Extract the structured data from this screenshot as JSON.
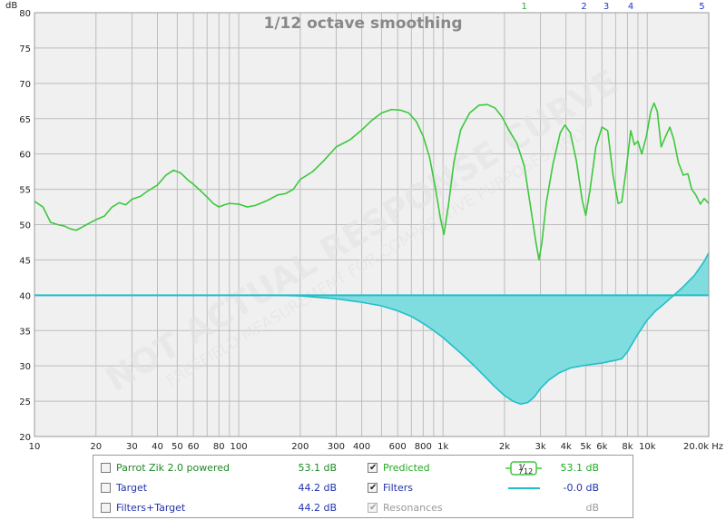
{
  "chart_data": {
    "type": "line",
    "title": "1/12 octave smoothing",
    "ylabel": "dB",
    "xlim": [
      10,
      20000
    ],
    "ylim": [
      20,
      80
    ],
    "x_scale": "log",
    "y_ticks": [
      20,
      25,
      30,
      35,
      40,
      45,
      50,
      55,
      60,
      65,
      70,
      75,
      80
    ],
    "x_tick_labels": [
      {
        "x": 10,
        "label": "10"
      },
      {
        "x": 20,
        "label": "20"
      },
      {
        "x": 30,
        "label": "30"
      },
      {
        "x": 40,
        "label": "40"
      },
      {
        "x": 50,
        "label": "50"
      },
      {
        "x": 60,
        "label": "60"
      },
      {
        "x": 80,
        "label": "80"
      },
      {
        "x": 100,
        "label": "100"
      },
      {
        "x": 200,
        "label": "200"
      },
      {
        "x": 300,
        "label": "300"
      },
      {
        "x": 400,
        "label": "400"
      },
      {
        "x": 600,
        "label": "600"
      },
      {
        "x": 800,
        "label": "800"
      },
      {
        "x": 1000,
        "label": "1k"
      },
      {
        "x": 2000,
        "label": "2k"
      },
      {
        "x": 3000,
        "label": "3k"
      },
      {
        "x": 4000,
        "label": "4k"
      },
      {
        "x": 5000,
        "label": "5k"
      },
      {
        "x": 6000,
        "label": "6k"
      },
      {
        "x": 8000,
        "label": "8k"
      },
      {
        "x": 10000,
        "label": "10k"
      },
      {
        "x": 20000,
        "label": "20.0k Hz"
      }
    ],
    "grid": true,
    "filter_markers": [
      {
        "label": "1",
        "x": 2500,
        "color": "#22aa22"
      },
      {
        "label": "2",
        "x": 4900,
        "color": "#2233cc"
      },
      {
        "label": "3",
        "x": 6300,
        "color": "#2233cc"
      },
      {
        "label": "4",
        "x": 8300,
        "color": "#2233cc"
      },
      {
        "label": "5",
        "x": 18500,
        "color": "#2233cc"
      }
    ],
    "series": [
      {
        "name": "Predicted",
        "color": "#3cc83c",
        "points": [
          [
            10,
            53.3
          ],
          [
            11,
            52.5
          ],
          [
            12,
            50.3
          ],
          [
            13,
            50.0
          ],
          [
            14,
            49.8
          ],
          [
            15,
            49.4
          ],
          [
            16,
            49.2
          ],
          [
            17,
            49.6
          ],
          [
            18,
            50.0
          ],
          [
            20,
            50.7
          ],
          [
            22,
            51.2
          ],
          [
            24,
            52.5
          ],
          [
            26,
            53.1
          ],
          [
            28,
            52.8
          ],
          [
            30,
            53.6
          ],
          [
            33,
            54.0
          ],
          [
            36,
            54.8
          ],
          [
            40,
            55.6
          ],
          [
            44,
            57.0
          ],
          [
            48,
            57.7
          ],
          [
            52,
            57.3
          ],
          [
            56,
            56.4
          ],
          [
            60,
            55.7
          ],
          [
            65,
            54.8
          ],
          [
            70,
            53.9
          ],
          [
            75,
            53.0
          ],
          [
            80,
            52.5
          ],
          [
            85,
            52.8
          ],
          [
            90,
            53.0
          ],
          [
            100,
            52.9
          ],
          [
            110,
            52.5
          ],
          [
            120,
            52.7
          ],
          [
            130,
            53.1
          ],
          [
            140,
            53.5
          ],
          [
            155,
            54.2
          ],
          [
            170,
            54.4
          ],
          [
            185,
            55.0
          ],
          [
            200,
            56.4
          ],
          [
            230,
            57.5
          ],
          [
            260,
            59.0
          ],
          [
            300,
            61.0
          ],
          [
            350,
            62.0
          ],
          [
            400,
            63.4
          ],
          [
            450,
            64.8
          ],
          [
            500,
            65.8
          ],
          [
            560,
            66.3
          ],
          [
            620,
            66.2
          ],
          [
            680,
            65.8
          ],
          [
            740,
            64.6
          ],
          [
            800,
            62.5
          ],
          [
            860,
            59.5
          ],
          [
            920,
            55.0
          ],
          [
            970,
            51.0
          ],
          [
            1010,
            48.6
          ],
          [
            1060,
            52.5
          ],
          [
            1130,
            58.8
          ],
          [
            1220,
            63.4
          ],
          [
            1350,
            65.8
          ],
          [
            1500,
            66.9
          ],
          [
            1650,
            67.0
          ],
          [
            1800,
            66.5
          ],
          [
            1950,
            65.2
          ],
          [
            2100,
            63.4
          ],
          [
            2300,
            61.5
          ],
          [
            2500,
            58.3
          ],
          [
            2700,
            52.0
          ],
          [
            2850,
            47.5
          ],
          [
            2950,
            45.0
          ],
          [
            3050,
            47.5
          ],
          [
            3200,
            53.0
          ],
          [
            3450,
            58.5
          ],
          [
            3750,
            63.0
          ],
          [
            3950,
            64.1
          ],
          [
            4200,
            63.0
          ],
          [
            4500,
            59.0
          ],
          [
            4800,
            53.5
          ],
          [
            5000,
            51.3
          ],
          [
            5250,
            55.0
          ],
          [
            5600,
            61.0
          ],
          [
            6000,
            63.8
          ],
          [
            6400,
            63.3
          ],
          [
            6800,
            57.0
          ],
          [
            7200,
            53.0
          ],
          [
            7500,
            53.2
          ],
          [
            7900,
            58.0
          ],
          [
            8300,
            63.3
          ],
          [
            8650,
            61.3
          ],
          [
            9000,
            61.8
          ],
          [
            9400,
            60.0
          ],
          [
            9900,
            62.5
          ],
          [
            10400,
            66.0
          ],
          [
            10800,
            67.2
          ],
          [
            11200,
            66.0
          ],
          [
            11700,
            61.0
          ],
          [
            12300,
            62.5
          ],
          [
            12900,
            63.8
          ],
          [
            13500,
            62.0
          ],
          [
            14200,
            58.8
          ],
          [
            15000,
            57.0
          ],
          [
            15800,
            57.2
          ],
          [
            16500,
            55.0
          ],
          [
            17200,
            54.3
          ],
          [
            18200,
            52.9
          ],
          [
            19000,
            53.7
          ],
          [
            20000,
            53.0
          ]
        ]
      },
      {
        "name": "Filters",
        "color": "#22bec8",
        "points": [
          [
            10,
            40.0
          ],
          [
            100,
            40.0
          ],
          [
            150,
            40.0
          ],
          [
            200,
            39.9
          ],
          [
            300,
            39.5
          ],
          [
            400,
            39.0
          ],
          [
            500,
            38.5
          ],
          [
            600,
            37.8
          ],
          [
            700,
            37.0
          ],
          [
            800,
            36.0
          ],
          [
            900,
            35.0
          ],
          [
            1000,
            34.0
          ],
          [
            1200,
            32.0
          ],
          [
            1400,
            30.2
          ],
          [
            1600,
            28.5
          ],
          [
            1800,
            27.0
          ],
          [
            2000,
            25.8
          ],
          [
            2200,
            25.0
          ],
          [
            2400,
            24.6
          ],
          [
            2600,
            24.8
          ],
          [
            2800,
            25.6
          ],
          [
            3000,
            26.8
          ],
          [
            3300,
            28.0
          ],
          [
            3700,
            29.0
          ],
          [
            4200,
            29.7
          ],
          [
            5000,
            30.1
          ],
          [
            6000,
            30.4
          ],
          [
            7000,
            30.8
          ],
          [
            7500,
            31.0
          ],
          [
            8000,
            32.0
          ],
          [
            9000,
            34.5
          ],
          [
            10000,
            36.5
          ],
          [
            11000,
            37.8
          ],
          [
            12000,
            38.7
          ],
          [
            13500,
            40.0
          ],
          [
            15000,
            41.2
          ],
          [
            17000,
            42.8
          ],
          [
            19000,
            44.8
          ],
          [
            20000,
            46.0
          ]
        ]
      }
    ],
    "reference_level": 40,
    "watermark_lines": [
      "NOT ACTUAL RESPONSE CURVE",
      "FREEFIELD MEASUREMENT FOR COMPARATIVE PURPOSES ONLY"
    ]
  },
  "legend": {
    "rows": [
      {
        "id": "parrot",
        "label": "Parrot Zik 2.0 powered",
        "value": "53.1 dB",
        "color": "#22882a",
        "checked": false,
        "disabled": false
      },
      {
        "id": "target",
        "label": "Target",
        "value": "44.2 dB",
        "color": "#2233aa",
        "checked": false,
        "disabled": false
      },
      {
        "id": "filters-target",
        "label": "Filters+Target",
        "value": "44.2 dB",
        "color": "#2233aa",
        "checked": false,
        "disabled": false
      },
      {
        "id": "predicted",
        "label": "Predicted",
        "value": "53.1 dB",
        "color": "#22aa22",
        "checked": true,
        "disabled": false
      },
      {
        "id": "filters",
        "label": "Filters",
        "value": "-0.0 dB",
        "color": "#2233aa",
        "checked": true,
        "disabled": false
      },
      {
        "id": "resonances",
        "label": "Resonances",
        "value": "dB",
        "color": "#9a9a9a",
        "checked": true,
        "disabled": true
      }
    ],
    "smoothing_badge_num": "1",
    "smoothing_badge_den": "12",
    "colors": {
      "predicted_line": "#3cc83c",
      "filters_line": "#22bec8"
    }
  }
}
